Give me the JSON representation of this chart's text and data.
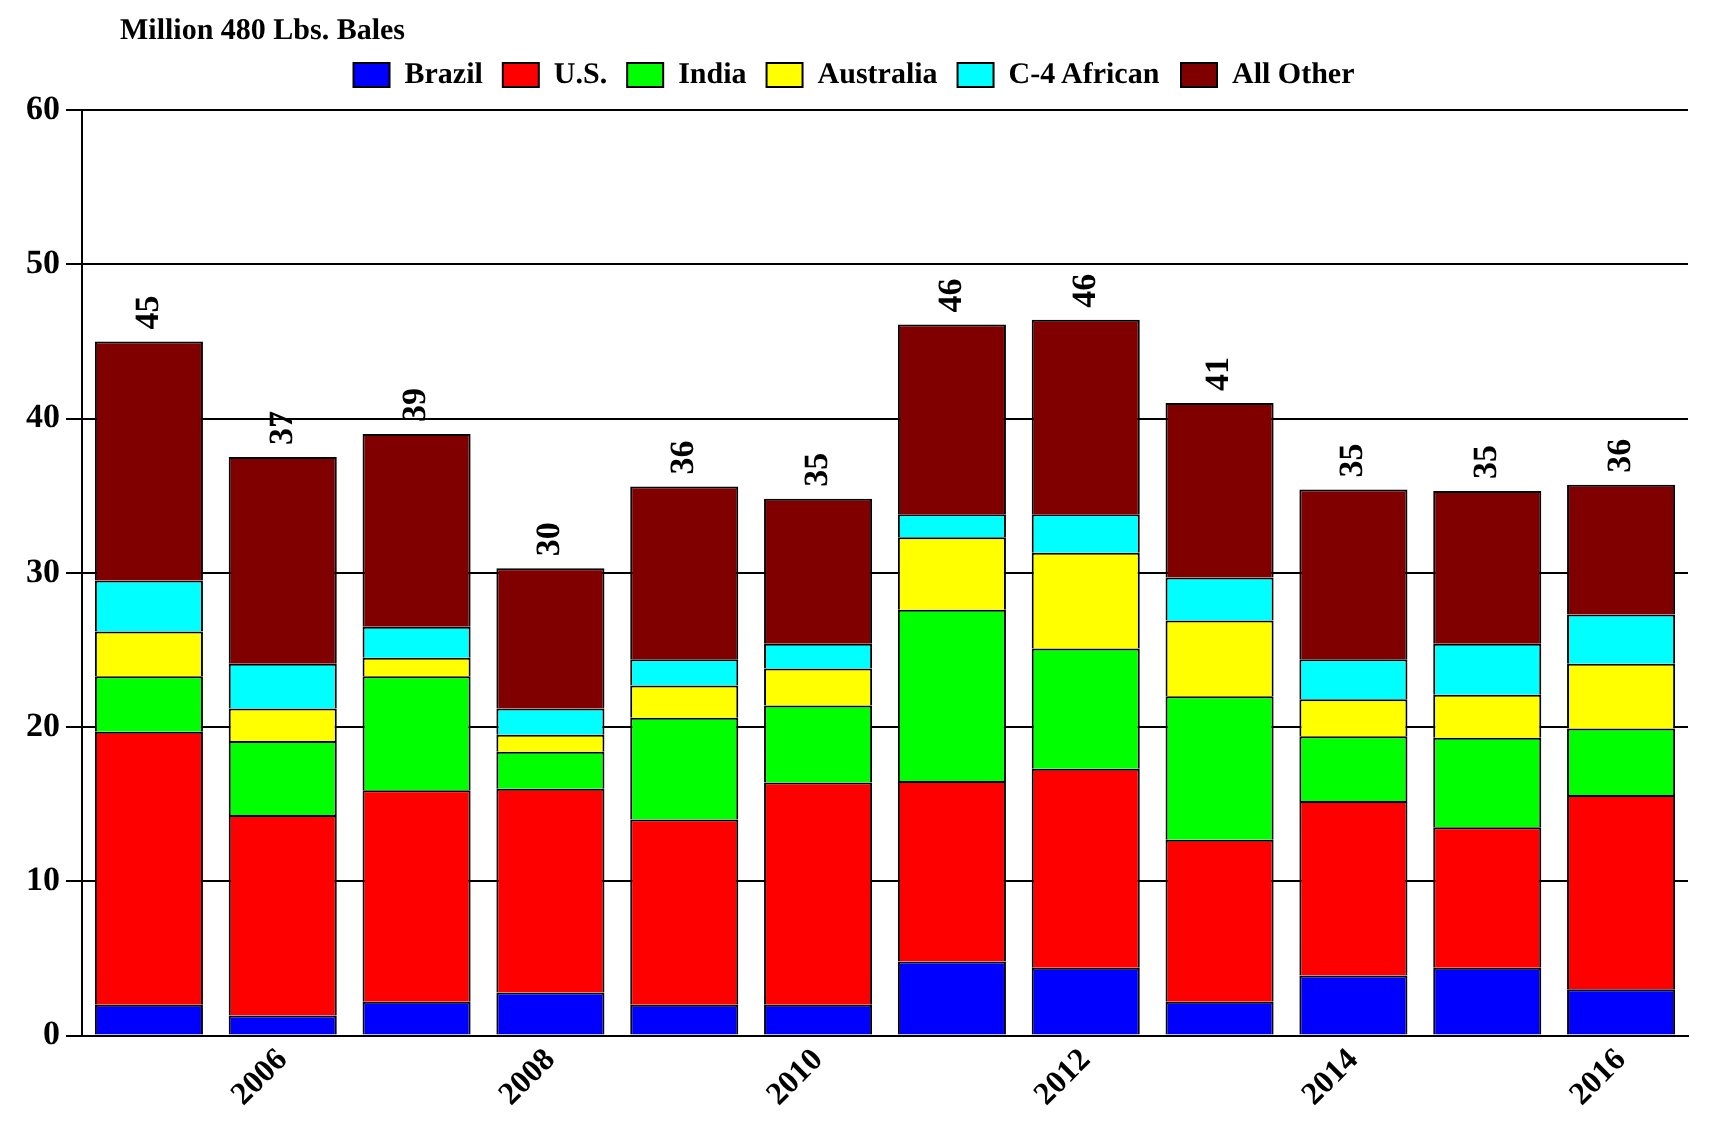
{
  "chart_data": {
    "type": "bar",
    "stacked": true,
    "ylabel": "Million 480 Lbs. Bales",
    "categories": [
      null,
      "2006",
      null,
      "2008",
      null,
      "2010",
      null,
      "2012",
      null,
      "2014",
      null,
      "2016"
    ],
    "series": [
      {
        "name": "Brazil",
        "color": "#0000ff",
        "values": [
          2.0,
          1.3,
          2.2,
          2.8,
          2.0,
          2.0,
          4.8,
          4.4,
          2.2,
          3.9,
          4.4,
          3.0
        ]
      },
      {
        "name": "U.S.",
        "color": "#ff0000",
        "values": [
          17.7,
          13.0,
          13.7,
          13.2,
          12.0,
          14.4,
          11.7,
          12.9,
          10.5,
          11.3,
          9.1,
          12.6
        ]
      },
      {
        "name": "India",
        "color": "#00ff00",
        "values": [
          3.6,
          4.8,
          7.4,
          2.4,
          6.6,
          5.0,
          11.1,
          7.8,
          9.3,
          4.2,
          5.8,
          4.3
        ]
      },
      {
        "name": "Australia",
        "color": "#ffff00",
        "values": [
          2.9,
          2.1,
          1.2,
          1.1,
          2.1,
          2.4,
          4.7,
          6.2,
          4.9,
          2.4,
          2.8,
          4.2
        ]
      },
      {
        "name": "C-4 African",
        "color": "#00ffff",
        "values": [
          3.3,
          2.9,
          2.0,
          1.7,
          1.7,
          1.6,
          1.5,
          2.5,
          2.8,
          2.6,
          3.3,
          3.2
        ]
      },
      {
        "name": "All Other",
        "color": "#800000",
        "values": [
          15.5,
          13.4,
          12.5,
          9.1,
          11.2,
          9.4,
          12.3,
          12.6,
          11.3,
          11.0,
          9.9,
          8.4
        ]
      }
    ],
    "totals": [
      "45",
      "37",
      "39",
      "30",
      "36",
      "35",
      "46",
      "46",
      "41",
      "35",
      "35",
      "36"
    ],
    "ylim": [
      0,
      60
    ],
    "yticks": [
      0,
      10,
      20,
      30,
      40,
      50,
      60
    ],
    "grid": "y",
    "legend": "top"
  }
}
